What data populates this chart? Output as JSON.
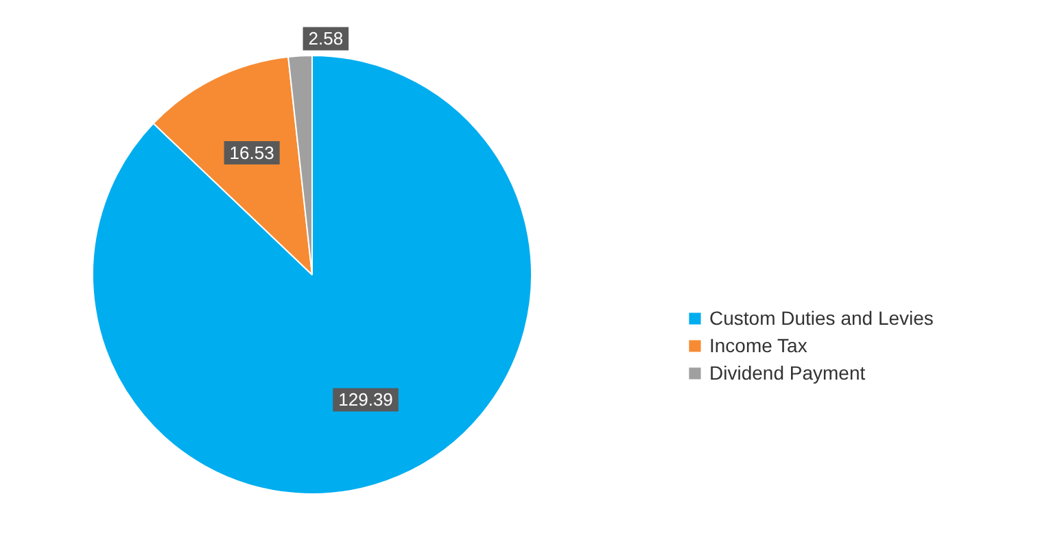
{
  "chart_data": {
    "type": "pie",
    "categories": [
      "Custom Duties and Levies",
      "Income Tax",
      "Dividend Payment"
    ],
    "values": [
      129.39,
      16.53,
      2.58
    ],
    "colors": [
      "#00adef",
      "#f68b33",
      "#a0a0a0"
    ],
    "data_labels": true,
    "legend": "right"
  }
}
